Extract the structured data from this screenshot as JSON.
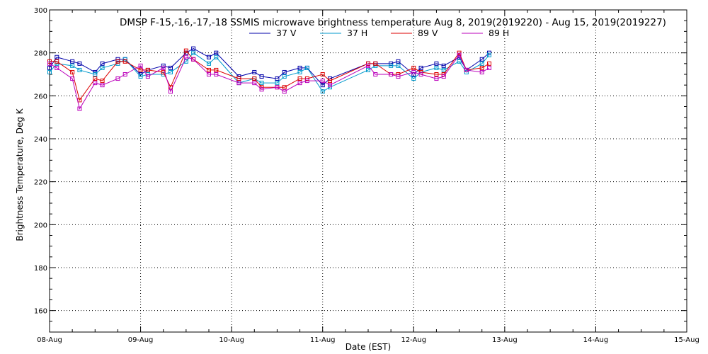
{
  "chart_data": {
    "type": "line",
    "title": "DMSP F-15,-16,-17,-18 SSMIS microwave brightness temperature Aug  8, 2019(2019220) - Aug 15, 2019(2019227)",
    "xlabel": "Date (EST)",
    "ylabel": "Brightness Temperature, Deg K",
    "xlim": [
      0,
      7
    ],
    "ylim": [
      150,
      300
    ],
    "grid": true,
    "legend_position": "top-center",
    "x_ticks": [
      {
        "value": 0,
        "label": "08-Aug"
      },
      {
        "value": 1,
        "label": "09-Aug"
      },
      {
        "value": 2,
        "label": "10-Aug"
      },
      {
        "value": 3,
        "label": "11-Aug"
      },
      {
        "value": 4,
        "label": "12-Aug"
      },
      {
        "value": 5,
        "label": "13-Aug"
      },
      {
        "value": 6,
        "label": "14-Aug"
      },
      {
        "value": 7,
        "label": "15-Aug"
      }
    ],
    "y_ticks": [
      160,
      180,
      200,
      220,
      240,
      260,
      280,
      300
    ],
    "series": [
      {
        "name": "37 V",
        "color": "#0000aa",
        "points": [
          [
            0.0,
            273
          ],
          [
            0.08,
            278
          ],
          [
            0.25,
            276
          ],
          [
            0.33,
            275
          ],
          [
            0.5,
            271
          ],
          [
            0.58,
            275
          ],
          [
            0.75,
            277
          ],
          [
            0.83,
            277
          ],
          [
            1.0,
            270
          ],
          [
            1.08,
            272
          ],
          [
            1.25,
            274
          ],
          [
            1.33,
            273
          ],
          [
            1.5,
            280
          ],
          [
            1.58,
            282
          ],
          [
            1.75,
            278
          ],
          [
            1.83,
            280
          ],
          [
            2.08,
            269
          ],
          [
            2.25,
            271
          ],
          [
            2.33,
            269
          ],
          [
            2.5,
            268
          ],
          [
            2.58,
            271
          ],
          [
            2.75,
            273
          ],
          [
            2.83,
            273
          ],
          [
            3.0,
            265
          ],
          [
            3.08,
            268
          ],
          [
            3.5,
            275
          ],
          [
            3.58,
            275
          ],
          [
            3.75,
            275
          ],
          [
            3.83,
            276
          ],
          [
            4.0,
            270
          ],
          [
            4.08,
            273
          ],
          [
            4.25,
            275
          ],
          [
            4.33,
            274
          ],
          [
            4.5,
            278
          ],
          [
            4.58,
            272
          ],
          [
            4.75,
            277
          ],
          [
            4.83,
            280
          ]
        ]
      },
      {
        "name": "37 H",
        "color": "#0099cc",
        "points": [
          [
            0.0,
            271
          ],
          [
            0.08,
            275
          ],
          [
            0.25,
            274
          ],
          [
            0.33,
            272
          ],
          [
            0.5,
            270
          ],
          [
            0.58,
            273
          ],
          [
            0.75,
            275
          ],
          [
            0.83,
            277
          ],
          [
            1.0,
            269
          ],
          [
            1.08,
            270
          ],
          [
            1.25,
            270
          ],
          [
            1.33,
            271
          ],
          [
            1.5,
            276
          ],
          [
            1.58,
            280
          ],
          [
            1.75,
            275
          ],
          [
            1.83,
            278
          ],
          [
            2.08,
            266
          ],
          [
            2.25,
            268
          ],
          [
            2.33,
            266
          ],
          [
            2.5,
            266
          ],
          [
            2.58,
            269
          ],
          [
            2.75,
            271
          ],
          [
            2.83,
            273
          ],
          [
            3.0,
            262
          ],
          [
            3.08,
            264
          ],
          [
            3.5,
            272
          ],
          [
            3.58,
            274
          ],
          [
            3.75,
            274
          ],
          [
            3.83,
            274
          ],
          [
            4.0,
            268
          ],
          [
            4.08,
            271
          ],
          [
            4.25,
            273
          ],
          [
            4.33,
            272
          ],
          [
            4.5,
            276
          ],
          [
            4.58,
            271
          ],
          [
            4.75,
            275
          ],
          [
            4.83,
            279
          ]
        ]
      },
      {
        "name": "89 V",
        "color": "#dd0000",
        "points": [
          [
            0.0,
            276
          ],
          [
            0.08,
            276
          ],
          [
            0.25,
            271
          ],
          [
            0.33,
            258
          ],
          [
            0.5,
            268
          ],
          [
            0.58,
            267
          ],
          [
            0.75,
            276
          ],
          [
            0.83,
            276
          ],
          [
            1.0,
            272
          ],
          [
            1.08,
            272
          ],
          [
            1.25,
            271
          ],
          [
            1.33,
            264
          ],
          [
            1.5,
            281
          ],
          [
            1.58,
            277
          ],
          [
            1.75,
            272
          ],
          [
            1.83,
            272
          ],
          [
            2.08,
            268
          ],
          [
            2.25,
            268
          ],
          [
            2.33,
            264
          ],
          [
            2.5,
            264
          ],
          [
            2.58,
            264
          ],
          [
            2.75,
            268
          ],
          [
            2.83,
            268
          ],
          [
            3.0,
            270
          ],
          [
            3.08,
            267
          ],
          [
            3.5,
            275
          ],
          [
            3.58,
            275
          ],
          [
            3.75,
            270
          ],
          [
            3.83,
            270
          ],
          [
            4.0,
            273
          ],
          [
            4.08,
            271
          ],
          [
            4.25,
            270
          ],
          [
            4.33,
            270
          ],
          [
            4.5,
            280
          ],
          [
            4.58,
            272
          ],
          [
            4.75,
            273
          ],
          [
            4.83,
            275
          ]
        ]
      },
      {
        "name": "89 H",
        "color": "#bb00bb",
        "points": [
          [
            0.0,
            275
          ],
          [
            0.08,
            273
          ],
          [
            0.25,
            268
          ],
          [
            0.33,
            254
          ],
          [
            0.5,
            266
          ],
          [
            0.58,
            265
          ],
          [
            0.75,
            268
          ],
          [
            0.83,
            270
          ],
          [
            1.0,
            274
          ],
          [
            1.08,
            269
          ],
          [
            1.25,
            273
          ],
          [
            1.33,
            262
          ],
          [
            1.5,
            278
          ],
          [
            1.58,
            277
          ],
          [
            1.75,
            270
          ],
          [
            1.83,
            270
          ],
          [
            2.08,
            266
          ],
          [
            2.25,
            266
          ],
          [
            2.33,
            263
          ],
          [
            2.5,
            264
          ],
          [
            2.58,
            262
          ],
          [
            2.75,
            266
          ],
          [
            2.83,
            267
          ],
          [
            3.0,
            267
          ],
          [
            3.08,
            265
          ],
          [
            3.5,
            274
          ],
          [
            3.58,
            270
          ],
          [
            3.75,
            270
          ],
          [
            3.83,
            269
          ],
          [
            4.0,
            271
          ],
          [
            4.08,
            270
          ],
          [
            4.25,
            268
          ],
          [
            4.33,
            269
          ],
          [
            4.5,
            279
          ],
          [
            4.58,
            272
          ],
          [
            4.75,
            271
          ],
          [
            4.83,
            273
          ]
        ]
      }
    ]
  }
}
